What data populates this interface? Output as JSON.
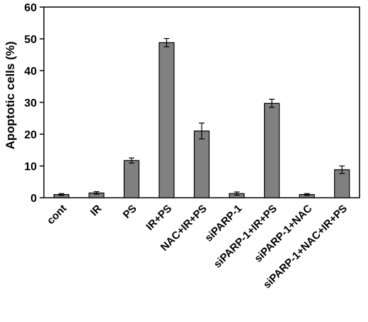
{
  "chart_data": {
    "type": "bar",
    "title": "",
    "xlabel": "",
    "ylabel": "Apoptotic cells (%)",
    "ylim": [
      0,
      60
    ],
    "yticks": [
      0,
      10,
      20,
      30,
      40,
      50,
      60
    ],
    "grid": false,
    "legend": "none",
    "categories": [
      "cont",
      "IR",
      "PS",
      "IR+PS",
      "NAC+IR+PS",
      "siPARP-1",
      "siPARP-1+IR+PS",
      "siPARP-1+NAC",
      "siPARP-1+NAC+IR+PS"
    ],
    "values": [
      1.0,
      1.5,
      11.7,
      48.8,
      21.0,
      1.3,
      29.7,
      1.0,
      8.8
    ],
    "errors": [
      0.3,
      0.4,
      0.8,
      1.3,
      2.5,
      0.5,
      1.3,
      0.3,
      1.2
    ],
    "colors": {
      "bar_fill": "#808080",
      "bar_stroke": "#000000",
      "axis": "#000000"
    }
  }
}
